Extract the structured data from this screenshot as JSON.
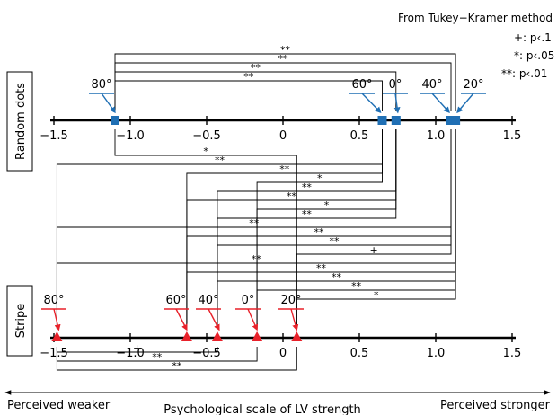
{
  "legend": {
    "title": "From Tukey−Kramer method",
    "entries": [
      "+: p‹.1",
      "*: p‹.05",
      "**: p‹.01"
    ]
  },
  "row_labels": {
    "top": "Random dots",
    "bottom": "Stripe"
  },
  "bottom": {
    "left": "Perceived weaker",
    "right": "Perceived stronger",
    "axis_title": "Psychological scale of LV strength"
  },
  "colors": {
    "random_dots": "#1f6fb4",
    "stripe": "#e8212a",
    "bracket": "#000000"
  },
  "chart_data": {
    "type": "scatter",
    "xlim": [
      -1.5,
      1.5
    ],
    "ticks": [
      -1.5,
      -1.0,
      -0.5,
      0,
      0.5,
      1.0,
      1.5
    ],
    "tick_labels": [
      "−1.5",
      "−1.0",
      "−0.5",
      "0",
      "0.5",
      "1.0",
      "1.5"
    ],
    "series": [
      {
        "name": "Random dots",
        "marker": "square",
        "points": [
          {
            "label": "80°",
            "x": -1.1
          },
          {
            "label": "60°",
            "x": 0.65
          },
          {
            "label": "0°",
            "x": 0.74
          },
          {
            "label": "40°",
            "x": 1.1
          },
          {
            "label": "20°",
            "x": 1.13
          }
        ]
      },
      {
        "name": "Stripe",
        "marker": "triangle",
        "points": [
          {
            "label": "80°",
            "x": -1.48
          },
          {
            "label": "60°",
            "x": -0.63
          },
          {
            "label": "40°",
            "x": -0.43
          },
          {
            "label": "0°",
            "x": -0.17
          },
          {
            "label": "20°",
            "x": 0.09
          }
        ]
      }
    ],
    "comparisons": [
      {
        "from": "Random dots 80°",
        "to": "Random dots 20°",
        "sig": "**"
      },
      {
        "from": "Random dots 80°",
        "to": "Random dots 40°",
        "sig": "**"
      },
      {
        "from": "Random dots 80°",
        "to": "Random dots 0°",
        "sig": "**"
      },
      {
        "from": "Random dots 80°",
        "to": "Random dots 60°",
        "sig": "**"
      },
      {
        "from": "Random dots 80°",
        "to": "Stripe 20°",
        "sig": "*"
      },
      {
        "from": "Random dots 60°",
        "to": "Stripe 80°",
        "sig": "**"
      },
      {
        "from": "Random dots 60°",
        "to": "Stripe 60°",
        "sig": "**"
      },
      {
        "from": "Random dots 60°",
        "to": "Stripe 0°",
        "sig": "*"
      },
      {
        "from": "Random dots 0°",
        "to": "Stripe 40°",
        "sig": "**"
      },
      {
        "from": "Random dots 0°",
        "to": "Stripe 60°",
        "sig": "**"
      },
      {
        "from": "Random dots 0°",
        "to": "Stripe 0°",
        "sig": "*"
      },
      {
        "from": "Random dots 0°",
        "to": "Stripe 40°",
        "sig": "**"
      },
      {
        "from": "Random dots 40°",
        "to": "Stripe 80°",
        "sig": "**"
      },
      {
        "from": "Random dots 40°",
        "to": "Stripe 60°",
        "sig": "**"
      },
      {
        "from": "Random dots 40°",
        "to": "Stripe 40°",
        "sig": "**"
      },
      {
        "from": "Random dots 40°",
        "to": "Stripe 20°",
        "sig": "+"
      },
      {
        "from": "Random dots 20°",
        "to": "Stripe 80°",
        "sig": "**"
      },
      {
        "from": "Random dots 20°",
        "to": "Stripe 60°",
        "sig": "**"
      },
      {
        "from": "Random dots 20°",
        "to": "Stripe 40°",
        "sig": "**"
      },
      {
        "from": "Random dots 20°",
        "to": "Stripe 0°",
        "sig": "**"
      },
      {
        "from": "Random dots 20°",
        "to": "Stripe 20°",
        "sig": "*"
      },
      {
        "from": "Stripe 80°",
        "to": "Stripe 40°",
        "sig": "+"
      },
      {
        "from": "Stripe 80°",
        "to": "Stripe 0°",
        "sig": "**"
      },
      {
        "from": "Stripe 80°",
        "to": "Stripe 20°",
        "sig": "**"
      }
    ]
  }
}
